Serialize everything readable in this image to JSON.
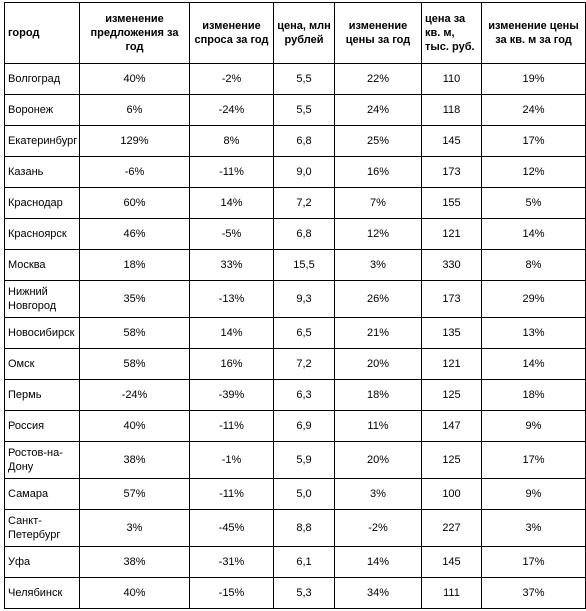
{
  "table": {
    "headers": [
      "город",
      "изменение предложения за год",
      "изменение спроса за год",
      "цена, млн рублей",
      "изменение цены за год",
      "цена за кв. м, тыс. руб.",
      "изменение цены за кв. м за год"
    ],
    "rows": [
      [
        "Волгоград",
        "40%",
        "-2%",
        "5,5",
        "22%",
        "110",
        "19%"
      ],
      [
        "Воронеж",
        "6%",
        "-24%",
        "5,5",
        "24%",
        "118",
        "24%"
      ],
      [
        "Екатеринбург",
        "129%",
        "8%",
        "6,8",
        "25%",
        "145",
        "17%"
      ],
      [
        "Казань",
        "-6%",
        "-11%",
        "9,0",
        "16%",
        "173",
        "12%"
      ],
      [
        "Краснодар",
        "60%",
        "14%",
        "7,2",
        "7%",
        "155",
        "5%"
      ],
      [
        "Красноярск",
        "46%",
        "-5%",
        "6,8",
        "12%",
        "121",
        "14%"
      ],
      [
        "Москва",
        "18%",
        "33%",
        "15,5",
        "3%",
        "330",
        "8%"
      ],
      [
        "Нижний Новгород",
        "35%",
        "-13%",
        "9,3",
        "26%",
        "173",
        "29%"
      ],
      [
        "Новосибирск",
        "58%",
        "14%",
        "6,5",
        "21%",
        "135",
        "13%"
      ],
      [
        "Омск",
        "58%",
        "16%",
        "7,2",
        "20%",
        "121",
        "14%"
      ],
      [
        "Пермь",
        "-24%",
        "-39%",
        "6,3",
        "18%",
        "125",
        "18%"
      ],
      [
        "Россия",
        "40%",
        "-11%",
        "6,9",
        "11%",
        "147",
        "9%"
      ],
      [
        "Ростов-на-Дону",
        "38%",
        "-1%",
        "5,9",
        "20%",
        "125",
        "17%"
      ],
      [
        "Самара",
        "57%",
        "-11%",
        "5,0",
        "3%",
        "100",
        "9%"
      ],
      [
        "Санкт-Петербург",
        "3%",
        "-45%",
        "8,8",
        "-2%",
        "227",
        "3%"
      ],
      [
        "Уфа",
        "38%",
        "-31%",
        "6,1",
        "14%",
        "145",
        "17%"
      ],
      [
        "Челябинск",
        "40%",
        "-15%",
        "5,3",
        "34%",
        "111",
        "37%"
      ]
    ]
  }
}
